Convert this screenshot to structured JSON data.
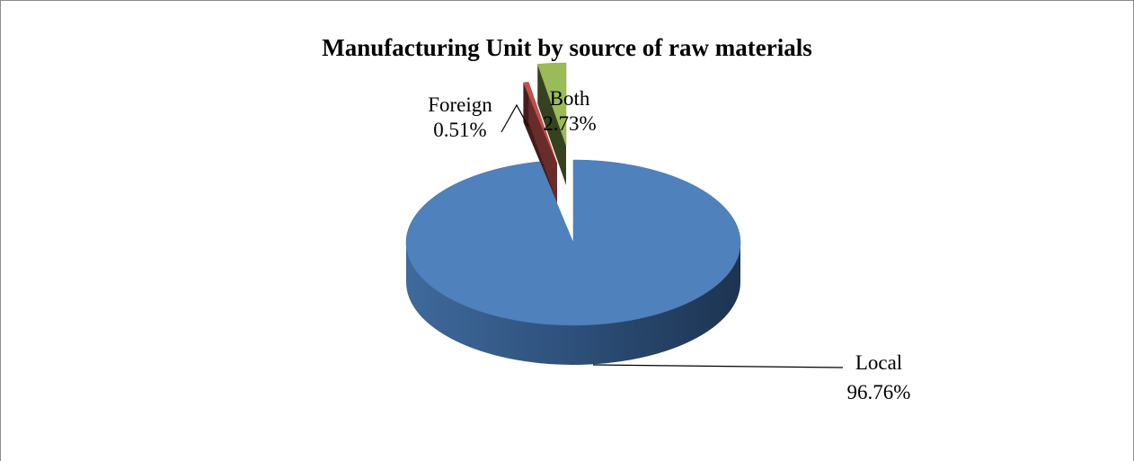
{
  "chart_data": {
    "type": "pie",
    "title": "Manufacturing Unit by source of raw materials",
    "categories": [
      "Local",
      "Foreign",
      "Both"
    ],
    "values": [
      96.76,
      0.51,
      2.73
    ],
    "data_labels": [
      {
        "name": "Local",
        "value": "96.76%"
      },
      {
        "name": "Foreign",
        "value": "0.51%"
      },
      {
        "name": "Both",
        "value": "2.73%"
      }
    ],
    "colors": [
      "#4f81bd",
      "#c0504d",
      "#9bbb59"
    ],
    "legend": "none",
    "style": "3d-exploded"
  }
}
